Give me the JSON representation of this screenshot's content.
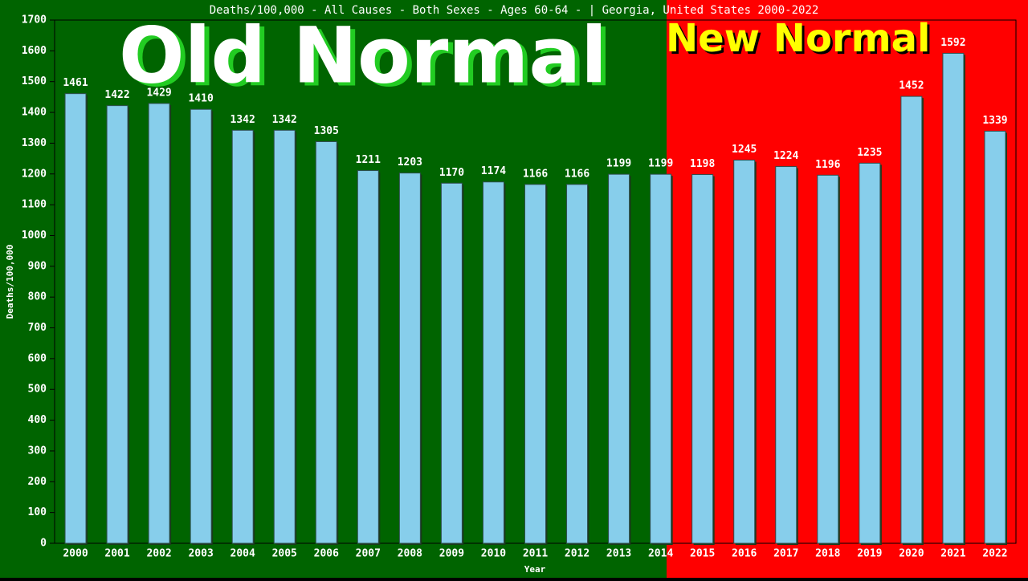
{
  "chart_data": {
    "type": "bar",
    "title": "Deaths/100,000 - All Causes - Both Sexes - Ages 60-64 -  | Georgia, United States 2000-2022",
    "x_label": "Year",
    "y_label": "Deaths/100,000",
    "annotations": [
      "Old Normal",
      "New Normal"
    ],
    "categories": [
      "2000",
      "2001",
      "2002",
      "2003",
      "2004",
      "2005",
      "2006",
      "2007",
      "2008",
      "2009",
      "2010",
      "2011",
      "2012",
      "2013",
      "2014",
      "2015",
      "2016",
      "2017",
      "2018",
      "2019",
      "2020",
      "2021",
      "2022"
    ],
    "values": [
      1461,
      1422,
      1429,
      1410,
      1342,
      1342,
      1305,
      1211,
      1203,
      1170,
      1174,
      1166,
      1166,
      1199,
      1199,
      1198,
      1245,
      1224,
      1196,
      1235,
      1452,
      1592,
      1339
    ],
    "color": "#87ceeb",
    "ylim": [
      0,
      1700
    ],
    "yticks": [
      0,
      100,
      200,
      300,
      400,
      500,
      600,
      700,
      800,
      900,
      1000,
      1100,
      1200,
      1300,
      1400,
      1500,
      1600,
      1700
    ]
  }
}
